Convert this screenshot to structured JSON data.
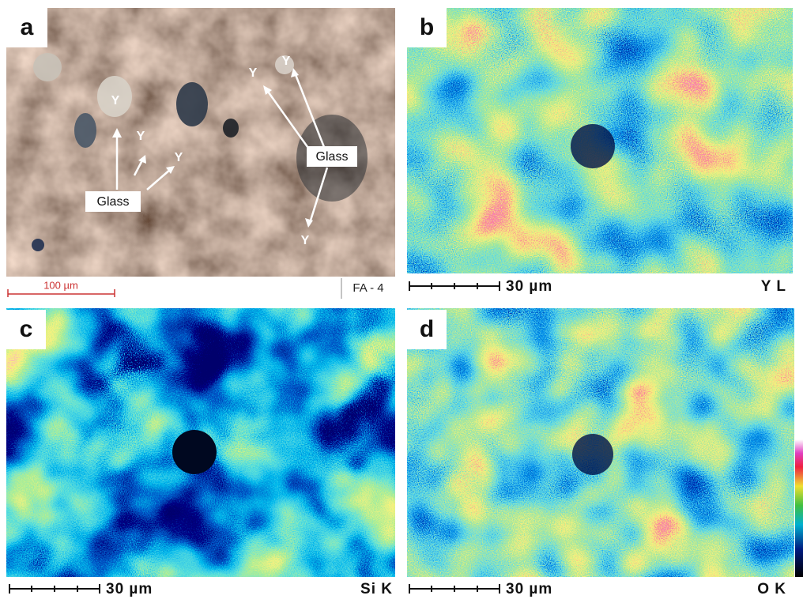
{
  "panels": [
    {
      "label": "a",
      "y_markers": [
        "Y",
        "Y",
        "Y",
        "Y",
        "Y",
        "Y"
      ],
      "glass_labels": [
        "Glass",
        "Glass"
      ],
      "scale_bar": "100 µm",
      "sample": "FA - 4"
    },
    {
      "label": "b",
      "scale_bar": "30 µm",
      "element": "Y L"
    },
    {
      "label": "c",
      "scale_bar": "30 µm",
      "element": "Si K"
    },
    {
      "label": "d",
      "scale_bar": "30 µm",
      "element": "O K"
    }
  ]
}
